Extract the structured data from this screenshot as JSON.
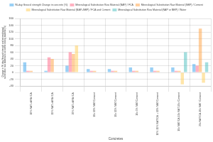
{
  "chart_data": {
    "type": "bar",
    "categories": [
      "10% NAT-vARA /CA",
      "15% NAT-vARA /CA",
      "20% NAT-vARA /CA",
      "10c 10% NAT/Cement",
      "10c 15% NAT/Cement",
      "10c 5% NAT/Cement",
      "10% 15% NAT/CA + 10% NAT/Cement",
      "10c NAT/CA-10c NAT-10c /Cement",
      "20c NAT/CA-10c NAT /Cement"
    ],
    "series": [
      {
        "name": "90-day flexural strength Change in concrete (%)",
        "values": [
          30,
          5,
          20,
          10,
          10,
          15,
          15,
          15,
          25
        ]
      },
      {
        "name": "Mineralogical Substitution Raw Material (NAP) / FCA",
        "values": [
          5,
          45,
          60,
          5,
          5,
          5,
          5,
          5,
          20
        ]
      },
      {
        "name": "Mineralogical Substitution Raw Material (NBP) / Cement",
        "values": [
          5,
          40,
          55,
          5,
          5,
          5,
          5,
          5,
          130
        ]
      },
      {
        "name": "Mineralogical Substitution Raw Material (NAP+NBP) / FCA and Cement",
        "values": [
          0,
          0,
          80,
          0,
          0,
          0,
          0,
          -35,
          -30
        ]
      },
      {
        "name": "Mineralogical Substitution Raw Material (NAP or NBP) / Water",
        "values": [
          0,
          0,
          0,
          0,
          0,
          0,
          0,
          60,
          30
        ]
      }
    ],
    "xlabel": "Concretes",
    "ylabel": "Change in 90-day flexural strength and mineralogical\nsubstitution raw material-to-concrete mixing material (%)",
    "ylim": [
      -40,
      160
    ],
    "yticks": [
      -40,
      -20,
      0,
      20,
      40,
      60,
      80,
      100,
      120,
      140,
      160
    ],
    "grid": true,
    "legend": "top"
  }
}
